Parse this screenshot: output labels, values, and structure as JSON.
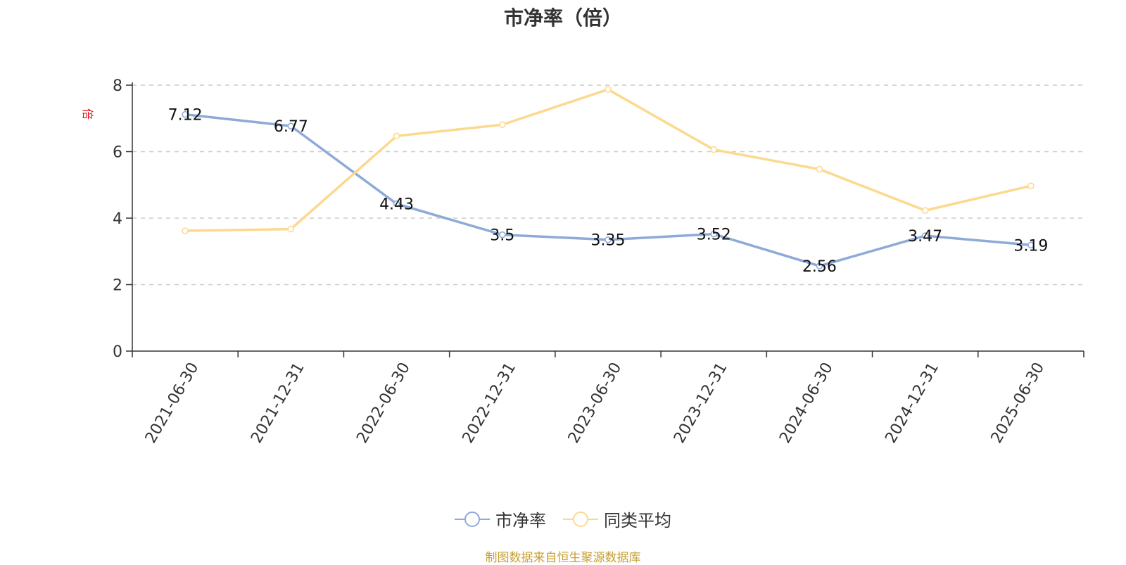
{
  "chart_data": {
    "type": "line",
    "title": "市净率（倍）",
    "ylabel": "倍",
    "ylim": [
      0,
      8
    ],
    "yticks": [
      0,
      2,
      4,
      6,
      8
    ],
    "grid": true,
    "legend_position": "bottom",
    "categories": [
      "2021-06-30",
      "2021-12-31",
      "2022-06-30",
      "2022-12-31",
      "2023-06-30",
      "2023-12-31",
      "2024-06-30",
      "2024-12-31",
      "2025-06-30"
    ],
    "series": [
      {
        "name": "市净率",
        "color": "#8eaad8",
        "values": [
          7.12,
          6.77,
          4.43,
          3.5,
          3.35,
          3.52,
          2.56,
          3.47,
          3.19
        ],
        "labels": [
          "7.12",
          "6.77",
          "4.43",
          "3.5",
          "3.35",
          "3.52",
          "2.56",
          "3.47",
          "3.19"
        ],
        "show_labels": true
      },
      {
        "name": "同类平均",
        "color": "#fbd98e",
        "values": [
          3.62,
          3.67,
          6.47,
          6.81,
          7.87,
          6.06,
          5.47,
          4.23,
          4.97
        ],
        "show_labels": false
      }
    ]
  },
  "source": "制图数据来自恒生聚源数据库"
}
